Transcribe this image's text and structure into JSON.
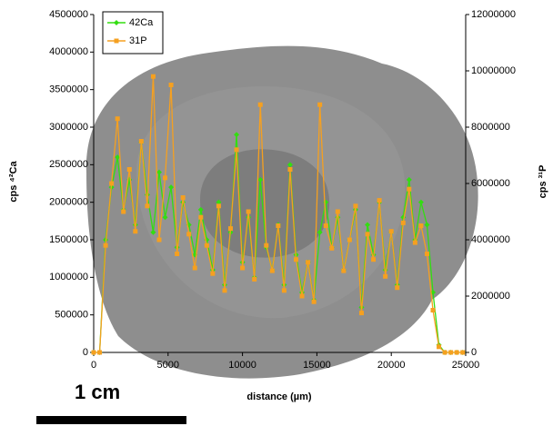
{
  "chart_data": {
    "type": "line",
    "x_label": "distance (µm)",
    "y_label": "cps ⁴²Ca",
    "y2_label": "cps ³¹P",
    "annotation": "1 cm",
    "x": [
      0,
      400,
      800,
      1200,
      1600,
      2000,
      2400,
      2800,
      3200,
      3600,
      4000,
      4400,
      4800,
      5200,
      5600,
      6000,
      6400,
      6800,
      7200,
      7600,
      8000,
      8400,
      8800,
      9200,
      9600,
      10000,
      10400,
      10800,
      11200,
      11600,
      12000,
      12400,
      12800,
      13200,
      13600,
      14000,
      14400,
      14800,
      15200,
      15600,
      16000,
      16400,
      16800,
      17200,
      17600,
      18000,
      18400,
      18800,
      19200,
      19600,
      20000,
      20400,
      20800,
      21200,
      21600,
      22000,
      22400,
      22800,
      23200,
      23600,
      24000,
      24400,
      24800
    ],
    "series": [
      {
        "name": "42Ca",
        "color": "#33dd11",
        "axis": "y",
        "values": [
          0,
          0,
          1500000,
          2200000,
          2600000,
          1900000,
          2300000,
          1700000,
          2800000,
          2100000,
          1600000,
          2400000,
          1800000,
          2200000,
          1400000,
          2000000,
          1700000,
          1300000,
          1900000,
          1500000,
          1100000,
          2000000,
          900000,
          1600000,
          2900000,
          1200000,
          1800000,
          1000000,
          2300000,
          1400000,
          1100000,
          1700000,
          900000,
          2500000,
          1300000,
          800000,
          1200000,
          700000,
          1600000,
          2000000,
          1400000,
          1800000,
          1100000,
          1500000,
          1900000,
          600000,
          1700000,
          1300000,
          2000000,
          1100000,
          1600000,
          900000,
          1800000,
          2300000,
          1500000,
          2000000,
          1700000,
          800000,
          100000,
          0,
          0,
          0,
          0
        ]
      },
      {
        "name": "31P",
        "color": "#f5a020",
        "axis": "y2",
        "values": [
          0,
          0,
          3800000,
          6000000,
          8300000,
          5000000,
          6500000,
          4300000,
          7500000,
          5200000,
          9800000,
          4000000,
          6200000,
          9500000,
          3500000,
          5500000,
          4200000,
          3000000,
          4800000,
          3800000,
          2800000,
          5200000,
          2200000,
          4400000,
          7200000,
          3000000,
          5000000,
          2600000,
          8800000,
          3800000,
          2900000,
          4500000,
          2200000,
          6500000,
          3300000,
          2000000,
          3200000,
          1800000,
          8800000,
          4500000,
          3700000,
          5000000,
          2900000,
          4000000,
          5200000,
          1400000,
          4200000,
          3300000,
          5400000,
          2700000,
          4300000,
          2300000,
          4600000,
          5800000,
          3900000,
          4500000,
          3500000,
          1500000,
          200000,
          0,
          0,
          0,
          0
        ]
      }
    ],
    "xlim": [
      0,
      25000
    ],
    "xticks": [
      0,
      5000,
      10000,
      15000,
      20000,
      25000
    ],
    "ylim": [
      0,
      4500000
    ],
    "yticks": [
      0,
      500000,
      1000000,
      1500000,
      2000000,
      2500000,
      3000000,
      3500000,
      4000000,
      4500000
    ],
    "y2lim": [
      0,
      12000000
    ],
    "y2ticks": [
      0,
      2000000,
      4000000,
      6000000,
      8000000,
      10000000,
      12000000
    ],
    "legend": "top-left"
  }
}
